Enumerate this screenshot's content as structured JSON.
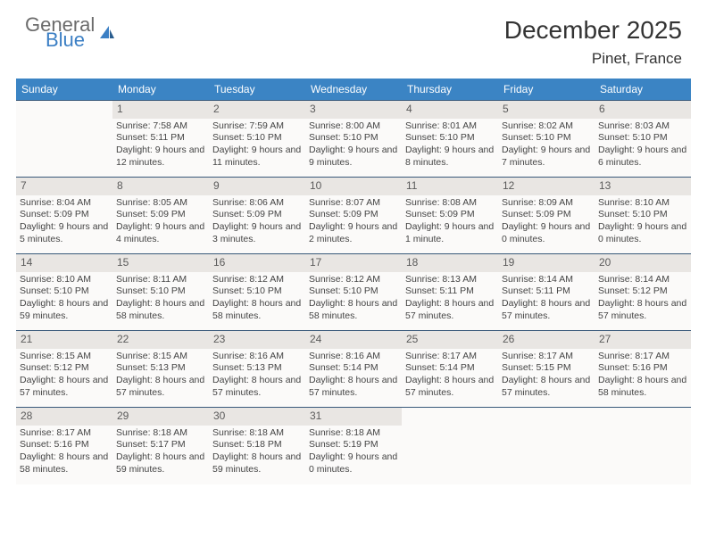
{
  "logo": {
    "line1": "General",
    "line2": "Blue"
  },
  "title": "December 2025",
  "location": "Pinet, France",
  "colors": {
    "header_bg": "#3b84c4",
    "header_text": "#ffffff",
    "cell_border": "#39597a",
    "daynum_bg": "#e9e6e3",
    "cell_bg": "#fbfaf9"
  },
  "weekdays": [
    "Sunday",
    "Monday",
    "Tuesday",
    "Wednesday",
    "Thursday",
    "Friday",
    "Saturday"
  ],
  "weeks": [
    [
      null,
      {
        "n": "1",
        "sr": "Sunrise: 7:58 AM",
        "ss": "Sunset: 5:11 PM",
        "dl": "Daylight: 9 hours and 12 minutes."
      },
      {
        "n": "2",
        "sr": "Sunrise: 7:59 AM",
        "ss": "Sunset: 5:10 PM",
        "dl": "Daylight: 9 hours and 11 minutes."
      },
      {
        "n": "3",
        "sr": "Sunrise: 8:00 AM",
        "ss": "Sunset: 5:10 PM",
        "dl": "Daylight: 9 hours and 9 minutes."
      },
      {
        "n": "4",
        "sr": "Sunrise: 8:01 AM",
        "ss": "Sunset: 5:10 PM",
        "dl": "Daylight: 9 hours and 8 minutes."
      },
      {
        "n": "5",
        "sr": "Sunrise: 8:02 AM",
        "ss": "Sunset: 5:10 PM",
        "dl": "Daylight: 9 hours and 7 minutes."
      },
      {
        "n": "6",
        "sr": "Sunrise: 8:03 AM",
        "ss": "Sunset: 5:10 PM",
        "dl": "Daylight: 9 hours and 6 minutes."
      }
    ],
    [
      {
        "n": "7",
        "sr": "Sunrise: 8:04 AM",
        "ss": "Sunset: 5:09 PM",
        "dl": "Daylight: 9 hours and 5 minutes."
      },
      {
        "n": "8",
        "sr": "Sunrise: 8:05 AM",
        "ss": "Sunset: 5:09 PM",
        "dl": "Daylight: 9 hours and 4 minutes."
      },
      {
        "n": "9",
        "sr": "Sunrise: 8:06 AM",
        "ss": "Sunset: 5:09 PM",
        "dl": "Daylight: 9 hours and 3 minutes."
      },
      {
        "n": "10",
        "sr": "Sunrise: 8:07 AM",
        "ss": "Sunset: 5:09 PM",
        "dl": "Daylight: 9 hours and 2 minutes."
      },
      {
        "n": "11",
        "sr": "Sunrise: 8:08 AM",
        "ss": "Sunset: 5:09 PM",
        "dl": "Daylight: 9 hours and 1 minute."
      },
      {
        "n": "12",
        "sr": "Sunrise: 8:09 AM",
        "ss": "Sunset: 5:09 PM",
        "dl": "Daylight: 9 hours and 0 minutes."
      },
      {
        "n": "13",
        "sr": "Sunrise: 8:10 AM",
        "ss": "Sunset: 5:10 PM",
        "dl": "Daylight: 9 hours and 0 minutes."
      }
    ],
    [
      {
        "n": "14",
        "sr": "Sunrise: 8:10 AM",
        "ss": "Sunset: 5:10 PM",
        "dl": "Daylight: 8 hours and 59 minutes."
      },
      {
        "n": "15",
        "sr": "Sunrise: 8:11 AM",
        "ss": "Sunset: 5:10 PM",
        "dl": "Daylight: 8 hours and 58 minutes."
      },
      {
        "n": "16",
        "sr": "Sunrise: 8:12 AM",
        "ss": "Sunset: 5:10 PM",
        "dl": "Daylight: 8 hours and 58 minutes."
      },
      {
        "n": "17",
        "sr": "Sunrise: 8:12 AM",
        "ss": "Sunset: 5:10 PM",
        "dl": "Daylight: 8 hours and 58 minutes."
      },
      {
        "n": "18",
        "sr": "Sunrise: 8:13 AM",
        "ss": "Sunset: 5:11 PM",
        "dl": "Daylight: 8 hours and 57 minutes."
      },
      {
        "n": "19",
        "sr": "Sunrise: 8:14 AM",
        "ss": "Sunset: 5:11 PM",
        "dl": "Daylight: 8 hours and 57 minutes."
      },
      {
        "n": "20",
        "sr": "Sunrise: 8:14 AM",
        "ss": "Sunset: 5:12 PM",
        "dl": "Daylight: 8 hours and 57 minutes."
      }
    ],
    [
      {
        "n": "21",
        "sr": "Sunrise: 8:15 AM",
        "ss": "Sunset: 5:12 PM",
        "dl": "Daylight: 8 hours and 57 minutes."
      },
      {
        "n": "22",
        "sr": "Sunrise: 8:15 AM",
        "ss": "Sunset: 5:13 PM",
        "dl": "Daylight: 8 hours and 57 minutes."
      },
      {
        "n": "23",
        "sr": "Sunrise: 8:16 AM",
        "ss": "Sunset: 5:13 PM",
        "dl": "Daylight: 8 hours and 57 minutes."
      },
      {
        "n": "24",
        "sr": "Sunrise: 8:16 AM",
        "ss": "Sunset: 5:14 PM",
        "dl": "Daylight: 8 hours and 57 minutes."
      },
      {
        "n": "25",
        "sr": "Sunrise: 8:17 AM",
        "ss": "Sunset: 5:14 PM",
        "dl": "Daylight: 8 hours and 57 minutes."
      },
      {
        "n": "26",
        "sr": "Sunrise: 8:17 AM",
        "ss": "Sunset: 5:15 PM",
        "dl": "Daylight: 8 hours and 57 minutes."
      },
      {
        "n": "27",
        "sr": "Sunrise: 8:17 AM",
        "ss": "Sunset: 5:16 PM",
        "dl": "Daylight: 8 hours and 58 minutes."
      }
    ],
    [
      {
        "n": "28",
        "sr": "Sunrise: 8:17 AM",
        "ss": "Sunset: 5:16 PM",
        "dl": "Daylight: 8 hours and 58 minutes."
      },
      {
        "n": "29",
        "sr": "Sunrise: 8:18 AM",
        "ss": "Sunset: 5:17 PM",
        "dl": "Daylight: 8 hours and 59 minutes."
      },
      {
        "n": "30",
        "sr": "Sunrise: 8:18 AM",
        "ss": "Sunset: 5:18 PM",
        "dl": "Daylight: 8 hours and 59 minutes."
      },
      {
        "n": "31",
        "sr": "Sunrise: 8:18 AM",
        "ss": "Sunset: 5:19 PM",
        "dl": "Daylight: 9 hours and 0 minutes."
      },
      null,
      null,
      null
    ]
  ]
}
